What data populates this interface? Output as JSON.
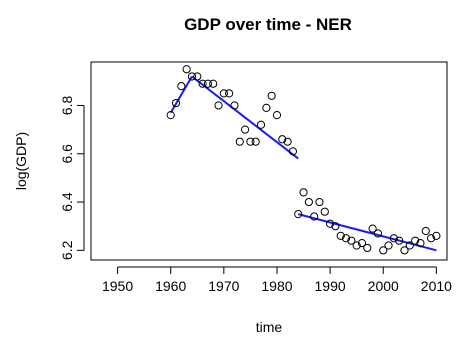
{
  "chart_data": {
    "type": "scatter",
    "title": "GDP over time - NER",
    "xlabel": "time",
    "ylabel": "log(GDP)",
    "xlim": [
      1945,
      2012
    ],
    "ylim": [
      6.16,
      6.98
    ],
    "xticks": [
      1950,
      1960,
      1970,
      1980,
      1990,
      2000,
      2010
    ],
    "yticks": [
      6.2,
      6.4,
      6.6,
      6.8
    ],
    "grid": false,
    "marker_color": "#000000",
    "fit_color": "#1a1aff",
    "points": [
      [
        1960,
        6.76
      ],
      [
        1961,
        6.81
      ],
      [
        1962,
        6.88
      ],
      [
        1963,
        6.95
      ],
      [
        1964,
        6.92
      ],
      [
        1965,
        6.92
      ],
      [
        1966,
        6.89
      ],
      [
        1967,
        6.89
      ],
      [
        1968,
        6.89
      ],
      [
        1969,
        6.8
      ],
      [
        1970,
        6.85
      ],
      [
        1971,
        6.85
      ],
      [
        1972,
        6.8
      ],
      [
        1973,
        6.65
      ],
      [
        1974,
        6.7
      ],
      [
        1975,
        6.65
      ],
      [
        1976,
        6.65
      ],
      [
        1977,
        6.72
      ],
      [
        1978,
        6.79
      ],
      [
        1979,
        6.84
      ],
      [
        1980,
        6.76
      ],
      [
        1981,
        6.66
      ],
      [
        1982,
        6.65
      ],
      [
        1983,
        6.61
      ],
      [
        1984,
        6.35
      ],
      [
        1985,
        6.44
      ],
      [
        1986,
        6.4
      ],
      [
        1987,
        6.34
      ],
      [
        1988,
        6.4
      ],
      [
        1989,
        6.36
      ],
      [
        1990,
        6.31
      ],
      [
        1991,
        6.3
      ],
      [
        1992,
        6.26
      ],
      [
        1993,
        6.25
      ],
      [
        1994,
        6.24
      ],
      [
        1995,
        6.22
      ],
      [
        1996,
        6.23
      ],
      [
        1997,
        6.21
      ],
      [
        1998,
        6.29
      ],
      [
        1999,
        6.27
      ],
      [
        2000,
        6.2
      ],
      [
        2001,
        6.22
      ],
      [
        2002,
        6.25
      ],
      [
        2003,
        6.24
      ],
      [
        2004,
        6.2
      ],
      [
        2005,
        6.22
      ],
      [
        2006,
        6.24
      ],
      [
        2007,
        6.23
      ],
      [
        2008,
        6.28
      ],
      [
        2009,
        6.25
      ],
      [
        2010,
        6.26
      ]
    ],
    "fit_segments": [
      [
        [
          1960,
          6.77
        ],
        [
          1964,
          6.92
        ]
      ],
      [
        [
          1964,
          6.92
        ],
        [
          1984,
          6.58
        ]
      ],
      [
        [
          1984,
          6.35
        ],
        [
          2010,
          6.2
        ]
      ]
    ]
  }
}
